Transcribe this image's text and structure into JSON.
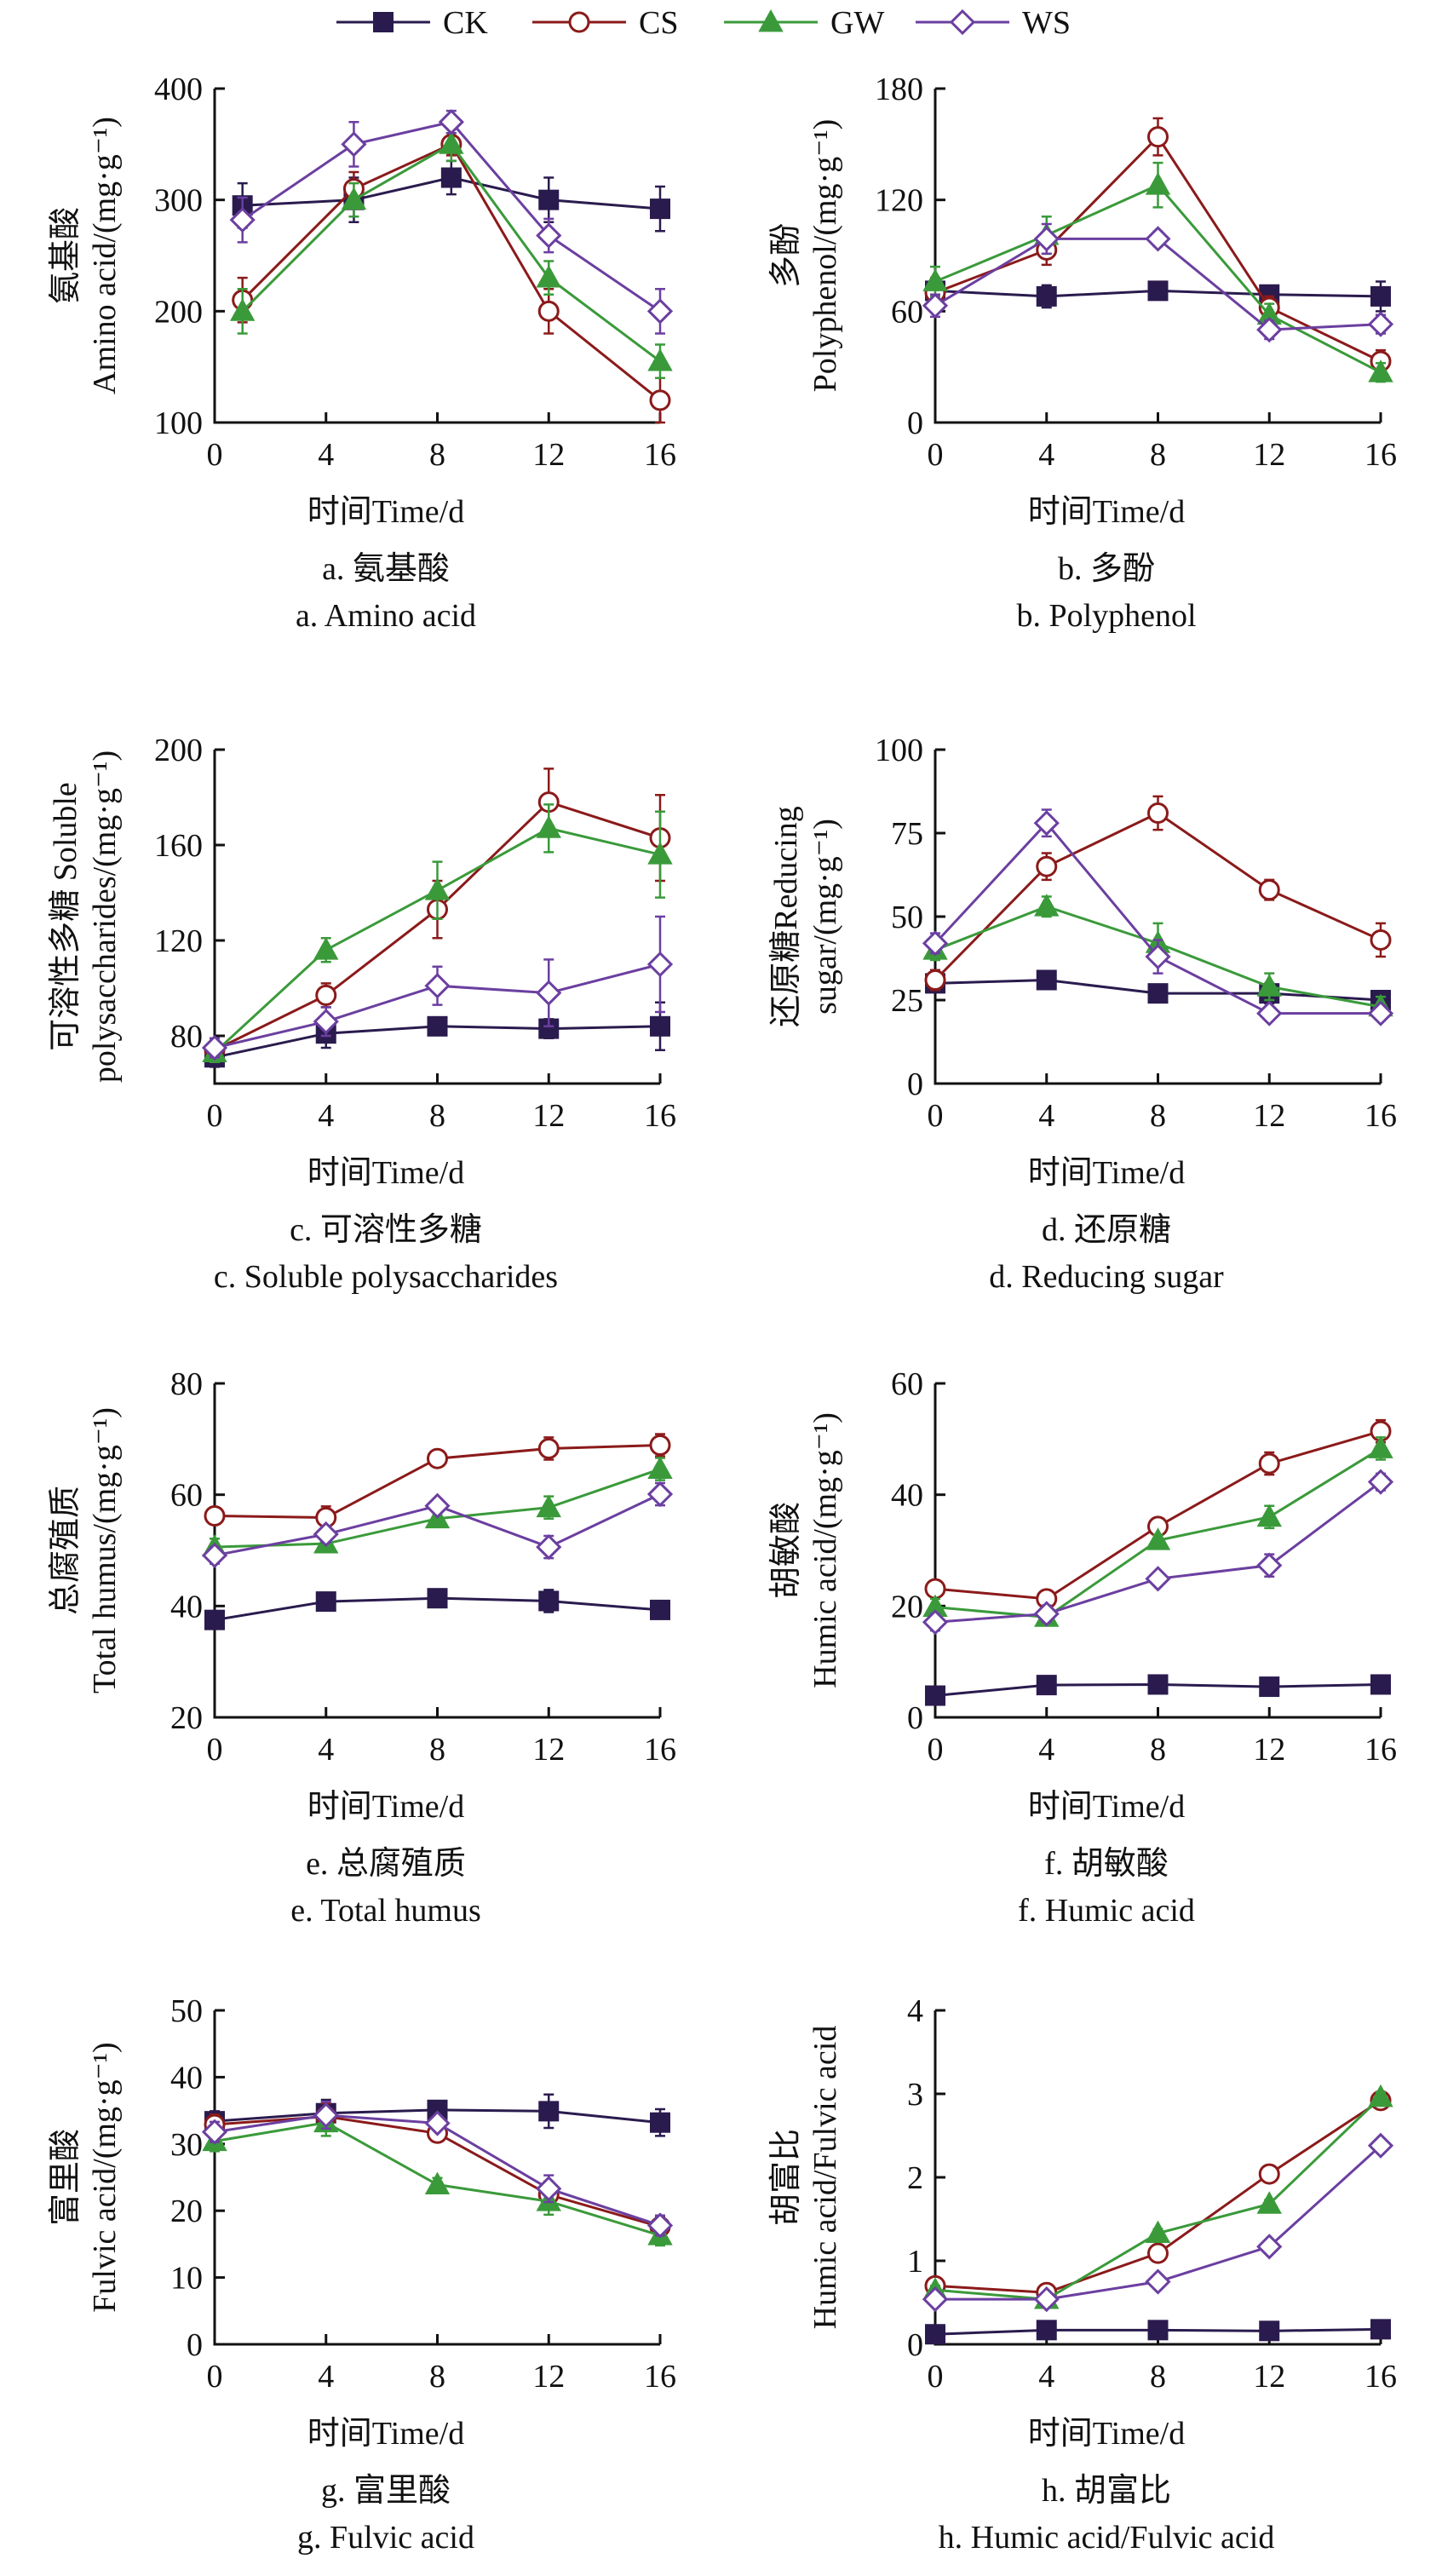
{
  "legend": [
    {
      "name": "CK",
      "color": "#2a1b4e",
      "marker": "square-filled"
    },
    {
      "name": "CS",
      "color": "#8b1a1a",
      "marker": "circle-open"
    },
    {
      "name": "GW",
      "color": "#3a9a3a",
      "marker": "triangle-filled"
    },
    {
      "name": "WS",
      "color": "#6b3fa0",
      "marker": "diamond-open"
    }
  ],
  "chart_data": [
    {
      "type": "line",
      "ylabel_lines": [
        "氨基酸",
        "Amino acid/(mg·g⁻¹)"
      ],
      "xlabel": "时间Time/d",
      "caption_zh": "a. 氨基酸",
      "caption_en": "a. Amino acid",
      "xlim": [
        0,
        16
      ],
      "xticks": [
        "0",
        "4",
        "8",
        "12",
        "16"
      ],
      "ylim": [
        100,
        400
      ],
      "yticks": [
        "100",
        "200",
        "300",
        "400"
      ],
      "series": [
        {
          "name": "CK",
          "x": [
            1,
            5,
            8.5,
            12,
            16
          ],
          "y": [
            295,
            300,
            320,
            300,
            292
          ],
          "err": [
            20,
            20,
            15,
            20,
            20
          ]
        },
        {
          "name": "CS",
          "x": [
            1,
            5,
            8.5,
            12,
            16
          ],
          "y": [
            210,
            310,
            350,
            200,
            120
          ],
          "err": [
            20,
            15,
            10,
            20,
            20
          ]
        },
        {
          "name": "GW",
          "x": [
            1,
            5,
            8.5,
            12,
            16
          ],
          "y": [
            200,
            300,
            350,
            230,
            155
          ],
          "err": [
            20,
            15,
            15,
            15,
            15
          ]
        },
        {
          "name": "WS",
          "x": [
            1,
            5,
            8.5,
            12,
            16
          ],
          "y": [
            282,
            350,
            370,
            268,
            200
          ],
          "err": [
            20,
            20,
            10,
            15,
            20
          ]
        }
      ]
    },
    {
      "type": "line",
      "ylabel_lines": [
        "多酚",
        "Polyphenol/(mg·g⁻¹)"
      ],
      "xlabel": "时间Time/d",
      "caption_zh": "b. 多酚",
      "caption_en": "b. Polyphenol",
      "xlim": [
        0,
        16
      ],
      "xticks": [
        "0",
        "4",
        "8",
        "12",
        "16"
      ],
      "ylim": [
        0,
        180
      ],
      "yticks": [
        "0",
        "60",
        "120",
        "180"
      ],
      "series": [
        {
          "name": "CK",
          "x": [
            0,
            4,
            8,
            12,
            16
          ],
          "y": [
            71,
            68,
            71,
            69,
            68
          ],
          "err": [
            5,
            6,
            3,
            4,
            8
          ]
        },
        {
          "name": "CS",
          "x": [
            0,
            4,
            8,
            12,
            16
          ],
          "y": [
            70,
            93,
            154,
            62,
            33
          ],
          "err": [
            8,
            8,
            10,
            6,
            6
          ]
        },
        {
          "name": "GW",
          "x": [
            0,
            4,
            8,
            12,
            16
          ],
          "y": [
            76,
            101,
            128,
            58,
            27
          ],
          "err": [
            8,
            10,
            12,
            6,
            5
          ]
        },
        {
          "name": "WS",
          "x": [
            0,
            4,
            8,
            12,
            16
          ],
          "y": [
            63,
            99,
            99,
            50,
            53
          ],
          "err": [
            6,
            8,
            4,
            5,
            5
          ]
        }
      ]
    },
    {
      "type": "line",
      "ylabel_lines": [
        "可溶性多糖 Soluble",
        "polysaccharides/(mg·g⁻¹)"
      ],
      "xlabel": "时间Time/d",
      "caption_zh": "c. 可溶性多糖",
      "caption_en": "c. Soluble polysaccharides",
      "xlim": [
        0,
        16
      ],
      "xticks": [
        "0",
        "4",
        "8",
        "12",
        "16"
      ],
      "ylim": [
        60,
        200
      ],
      "yticks": [
        "80",
        "120",
        "160",
        "200"
      ],
      "series": [
        {
          "name": "CK",
          "x": [
            0,
            4,
            8,
            12,
            16
          ],
          "y": [
            71,
            81,
            84,
            83,
            84
          ],
          "err": [
            4,
            6,
            3,
            4,
            10
          ]
        },
        {
          "name": "CS",
          "x": [
            0,
            4,
            8,
            12,
            16
          ],
          "y": [
            74,
            97,
            133,
            178,
            163
          ],
          "err": [
            4,
            5,
            12,
            14,
            18
          ]
        },
        {
          "name": "GW",
          "x": [
            0,
            4,
            8,
            12,
            16
          ],
          "y": [
            73,
            116,
            141,
            167,
            156
          ],
          "err": [
            4,
            5,
            12,
            10,
            18
          ]
        },
        {
          "name": "WS",
          "x": [
            0,
            4,
            8,
            12,
            16
          ],
          "y": [
            75,
            86,
            101,
            98,
            110
          ],
          "err": [
            4,
            6,
            8,
            14,
            20
          ]
        }
      ]
    },
    {
      "type": "line",
      "ylabel_lines": [
        "还原糖Reducing",
        "sugar/(mg·g⁻¹)"
      ],
      "xlabel": "时间Time/d",
      "caption_zh": "d. 还原糖",
      "caption_en": "d. Reducing sugar",
      "xlim": [
        0,
        16
      ],
      "xticks": [
        "0",
        "4",
        "8",
        "12",
        "16"
      ],
      "ylim": [
        0,
        100
      ],
      "yticks": [
        "0",
        "25",
        "50",
        "75",
        "100"
      ],
      "series": [
        {
          "name": "CK",
          "x": [
            0,
            4,
            8,
            12,
            16
          ],
          "y": [
            30,
            31,
            27,
            27,
            25
          ],
          "err": [
            2,
            2,
            2,
            3,
            2
          ]
        },
        {
          "name": "CS",
          "x": [
            0,
            4,
            8,
            12,
            16
          ],
          "y": [
            31,
            65,
            81,
            58,
            43
          ],
          "err": [
            3,
            4,
            5,
            3,
            5
          ]
        },
        {
          "name": "GW",
          "x": [
            0,
            4,
            8,
            12,
            16
          ],
          "y": [
            40,
            53,
            42,
            29,
            23
          ],
          "err": [
            3,
            3,
            6,
            4,
            3
          ]
        },
        {
          "name": "WS",
          "x": [
            0,
            4,
            8,
            12,
            16
          ],
          "y": [
            42,
            78,
            38,
            21,
            21
          ],
          "err": [
            3,
            4,
            5,
            2,
            2
          ]
        }
      ]
    },
    {
      "type": "line",
      "ylabel_lines": [
        "总腐殖质",
        "Total humus/(mg·g⁻¹)"
      ],
      "xlabel": "时间Time/d",
      "caption_zh": "e. 总腐殖质",
      "caption_en": "e. Total humus",
      "xlim": [
        0,
        16
      ],
      "xticks": [
        "0",
        "4",
        "8",
        "12",
        "16"
      ],
      "ylim": [
        20,
        80
      ],
      "yticks": [
        "20",
        "40",
        "60",
        "80"
      ],
      "series": [
        {
          "name": "CK",
          "x": [
            0,
            4,
            8,
            12,
            16
          ],
          "y": [
            37.5,
            40.8,
            41.4,
            40.9,
            39.3
          ],
          "err": [
            1.5,
            1.5,
            1,
            2,
            1.5
          ]
        },
        {
          "name": "CS",
          "x": [
            0,
            4,
            8,
            12,
            16
          ],
          "y": [
            56.2,
            55.9,
            66.5,
            68.3,
            68.9
          ],
          "err": [
            1.5,
            2,
            1,
            2,
            2
          ]
        },
        {
          "name": "GW",
          "x": [
            0,
            4,
            8,
            12,
            16
          ],
          "y": [
            50.6,
            51.2,
            55.7,
            57.7,
            64.6
          ],
          "err": [
            1.5,
            1.5,
            1,
            2,
            2
          ]
        },
        {
          "name": "WS",
          "x": [
            0,
            4,
            8,
            12,
            16
          ],
          "y": [
            49.1,
            52.9,
            58.0,
            50.6,
            60.1
          ],
          "err": [
            1.5,
            1.5,
            1,
            2,
            2
          ]
        }
      ]
    },
    {
      "type": "line",
      "ylabel_lines": [
        "胡敏酸",
        "Humic acid/(mg·g⁻¹)"
      ],
      "xlabel": "时间Time/d",
      "caption_zh": "f. 胡敏酸",
      "caption_en": "f. Humic acid",
      "xlim": [
        0,
        16
      ],
      "xticks": [
        "0",
        "4",
        "8",
        "12",
        "16"
      ],
      "ylim": [
        0,
        60
      ],
      "yticks": [
        "0",
        "20",
        "40",
        "60"
      ],
      "series": [
        {
          "name": "CK",
          "x": [
            0,
            4,
            8,
            12,
            16
          ],
          "y": [
            3.9,
            5.8,
            5.9,
            5.5,
            5.9
          ],
          "err": [
            1,
            1.5,
            1,
            1.5,
            1.5
          ]
        },
        {
          "name": "CS",
          "x": [
            0,
            4,
            8,
            12,
            16
          ],
          "y": [
            23.1,
            21.3,
            34.3,
            45.6,
            51.4
          ],
          "err": [
            1.5,
            1.5,
            1,
            2,
            2
          ]
        },
        {
          "name": "GW",
          "x": [
            0,
            4,
            8,
            12,
            16
          ],
          "y": [
            19.8,
            18.0,
            31.8,
            36.0,
            48.3
          ],
          "err": [
            1.5,
            1.5,
            1,
            2,
            2
          ]
        },
        {
          "name": "WS",
          "x": [
            0,
            4,
            8,
            12,
            16
          ],
          "y": [
            17.1,
            18.6,
            24.9,
            27.3,
            42.3
          ],
          "err": [
            1.5,
            1.5,
            1,
            2,
            1.5
          ]
        }
      ]
    },
    {
      "type": "line",
      "ylabel_lines": [
        "富里酸",
        "Fulvic acid/(mg·g⁻¹)"
      ],
      "xlabel": "时间Time/d",
      "caption_zh": "g. 富里酸",
      "caption_en": "g. Fulvic acid",
      "xlim": [
        0,
        16
      ],
      "xticks": [
        "0",
        "4",
        "8",
        "12",
        "16"
      ],
      "ylim": [
        0,
        50
      ],
      "yticks": [
        "0",
        "10",
        "20",
        "30",
        "40",
        "50"
      ],
      "series": [
        {
          "name": "CK",
          "x": [
            0,
            4,
            8,
            12,
            16
          ],
          "y": [
            33.4,
            34.6,
            35.1,
            34.9,
            33.2
          ],
          "err": [
            1.5,
            2,
            1,
            2.5,
            2
          ]
        },
        {
          "name": "CS",
          "x": [
            0,
            4,
            8,
            12,
            16
          ],
          "y": [
            32.9,
            34.1,
            31.6,
            22.4,
            17.6
          ],
          "err": [
            1.5,
            2,
            1,
            2,
            1.5
          ]
        },
        {
          "name": "GW",
          "x": [
            0,
            4,
            8,
            12,
            16
          ],
          "y": [
            30.4,
            33.2,
            23.9,
            21.4,
            16.3
          ],
          "err": [
            1.5,
            2,
            1,
            2,
            1.5
          ]
        },
        {
          "name": "WS",
          "x": [
            0,
            4,
            8,
            12,
            16
          ],
          "y": [
            31.8,
            34.3,
            33.1,
            23.3,
            17.8
          ],
          "err": [
            1.5,
            2,
            1,
            2,
            1.5
          ]
        }
      ]
    },
    {
      "type": "line",
      "ylabel_lines": [
        "胡富比",
        "Humic acid/Fulvic acid"
      ],
      "xlabel": "时间Time/d",
      "caption_zh": "h. 胡富比",
      "caption_en": "h. Humic acid/Fulvic acid",
      "xlim": [
        0,
        16
      ],
      "xticks": [
        "0",
        "4",
        "8",
        "12",
        "16"
      ],
      "ylim": [
        0,
        4
      ],
      "yticks": [
        "0",
        "1",
        "2",
        "3",
        "4"
      ],
      "series": [
        {
          "name": "CK",
          "x": [
            0,
            4,
            8,
            12,
            16
          ],
          "y": [
            0.12,
            0.17,
            0.17,
            0.16,
            0.18
          ],
          "err": [
            0.04,
            0.04,
            0.03,
            0.04,
            0.04
          ]
        },
        {
          "name": "CS",
          "x": [
            0,
            4,
            8,
            12,
            16
          ],
          "y": [
            0.7,
            0.62,
            1.09,
            2.04,
            2.92
          ],
          "err": [
            0.05,
            0.05,
            0.05,
            0.05,
            0.06
          ]
        },
        {
          "name": "GW",
          "x": [
            0,
            4,
            8,
            12,
            16
          ],
          "y": [
            0.65,
            0.54,
            1.33,
            1.68,
            2.96
          ],
          "err": [
            0.05,
            0.05,
            0.05,
            0.05,
            0.06
          ]
        },
        {
          "name": "WS",
          "x": [
            0,
            4,
            8,
            12,
            16
          ],
          "y": [
            0.54,
            0.54,
            0.75,
            1.17,
            2.38
          ],
          "err": [
            0.05,
            0.05,
            0.05,
            0.05,
            0.06
          ]
        }
      ]
    }
  ]
}
